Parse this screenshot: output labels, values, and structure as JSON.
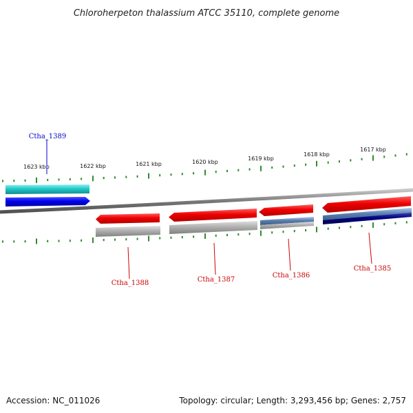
{
  "map": {
    "title": "Chloroherpeton thalassium ATCC 35110, complete genome",
    "accession_text": "Accession: NC_011026",
    "topology_text": "Topology: circular; Length: 3,293,456 bp; Genes: 2,757"
  },
  "scale_labels": [
    "1623 kbp",
    "1622 kbp",
    "1621 kbp",
    "1620 kbp",
    "1619 kbp",
    "1618 kbp",
    "1617 kbp"
  ],
  "gene_labels": [
    {
      "name": "Ctha_1389",
      "color": "#0000cc"
    },
    {
      "name": "Ctha_1388",
      "color": "#cc0000"
    },
    {
      "name": "Ctha_1387",
      "color": "#cc0000"
    },
    {
      "name": "Ctha_1386",
      "color": "#cc0000"
    },
    {
      "name": "Ctha_1385",
      "color": "#cc0000"
    }
  ],
  "colors": {
    "backbone": "#8a8a8a",
    "tick": "#2e8b2e",
    "cds_forward": "#0000ee",
    "gene_forward": "#20c8c8",
    "cds_reverse": "#ee0000",
    "gene_reverse_gray": "#aaaaaa",
    "gene_reverse_steel": "#5a7fb0",
    "gene_reverse_navy": "#000080"
  }
}
